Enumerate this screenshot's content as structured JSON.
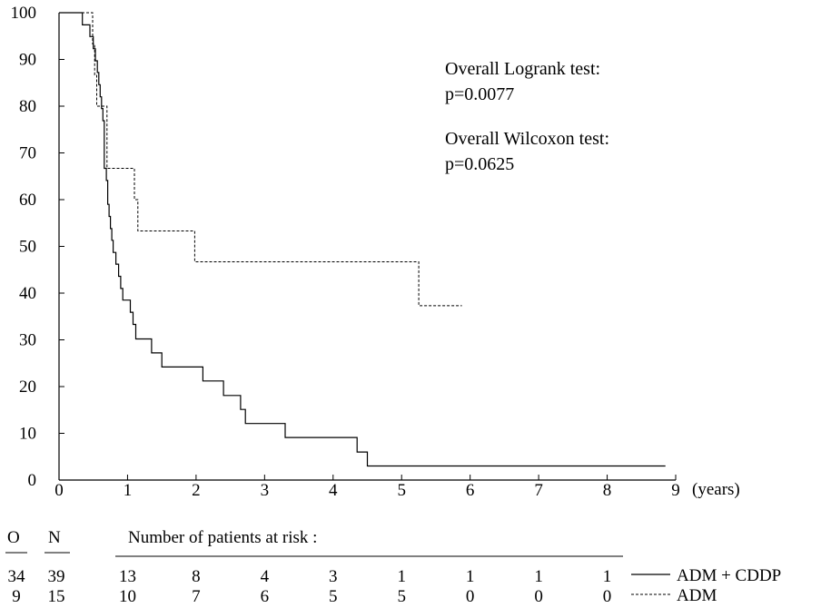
{
  "chart_data": {
    "type": "line",
    "subtype": "kaplan-meier step",
    "x_unit_label": "(years)",
    "xlim": [
      0,
      9
    ],
    "ylim": [
      0,
      100
    ],
    "x_ticks": [
      0,
      1,
      2,
      3,
      4,
      5,
      6,
      7,
      8,
      9
    ],
    "y_ticks": [
      0,
      10,
      20,
      30,
      40,
      50,
      60,
      70,
      80,
      90,
      100
    ],
    "annotations": [
      "Overall Logrank test:",
      "p=0.0077",
      "Overall Wilcoxon test:",
      "p=0.0625"
    ],
    "series": [
      {
        "name": "ADM + CDDP",
        "style": "solid",
        "points": [
          [
            0,
            100
          ],
          [
            0.34,
            100
          ],
          [
            0.34,
            97.4
          ],
          [
            0.45,
            97.4
          ],
          [
            0.45,
            94.9
          ],
          [
            0.5,
            94.9
          ],
          [
            0.5,
            92.3
          ],
          [
            0.53,
            92.3
          ],
          [
            0.53,
            89.7
          ],
          [
            0.56,
            89.7
          ],
          [
            0.56,
            87.2
          ],
          [
            0.58,
            87.2
          ],
          [
            0.58,
            84.6
          ],
          [
            0.6,
            84.6
          ],
          [
            0.6,
            82
          ],
          [
            0.62,
            82
          ],
          [
            0.62,
            79.5
          ],
          [
            0.64,
            79.5
          ],
          [
            0.64,
            76.9
          ],
          [
            0.66,
            76.9
          ],
          [
            0.66,
            66.7
          ],
          [
            0.69,
            66.7
          ],
          [
            0.69,
            64.1
          ],
          [
            0.71,
            64.1
          ],
          [
            0.71,
            59
          ],
          [
            0.73,
            59
          ],
          [
            0.73,
            56.4
          ],
          [
            0.75,
            56.4
          ],
          [
            0.75,
            53.8
          ],
          [
            0.77,
            53.8
          ],
          [
            0.77,
            51.3
          ],
          [
            0.79,
            51.3
          ],
          [
            0.79,
            48.7
          ],
          [
            0.83,
            48.7
          ],
          [
            0.83,
            46.2
          ],
          [
            0.87,
            46.2
          ],
          [
            0.87,
            43.6
          ],
          [
            0.9,
            43.6
          ],
          [
            0.9,
            41
          ],
          [
            0.93,
            41
          ],
          [
            0.93,
            38.5
          ],
          [
            1.04,
            38.5
          ],
          [
            1.04,
            35.9
          ],
          [
            1.08,
            35.9
          ],
          [
            1.08,
            33.3
          ],
          [
            1.12,
            33.3
          ],
          [
            1.12,
            30.2
          ],
          [
            1.35,
            30.2
          ],
          [
            1.35,
            27.2
          ],
          [
            1.5,
            27.2
          ],
          [
            1.5,
            24.2
          ],
          [
            2.1,
            24.2
          ],
          [
            2.1,
            21.2
          ],
          [
            2.4,
            21.2
          ],
          [
            2.4,
            18.1
          ],
          [
            2.65,
            18.1
          ],
          [
            2.65,
            15.1
          ],
          [
            2.72,
            15.1
          ],
          [
            2.72,
            12.1
          ],
          [
            3.3,
            12.1
          ],
          [
            3.3,
            9.1
          ],
          [
            4.35,
            9.1
          ],
          [
            4.35,
            6
          ],
          [
            4.5,
            6
          ],
          [
            4.5,
            3
          ],
          [
            8.85,
            3
          ]
        ]
      },
      {
        "name": "ADM",
        "style": "dashed",
        "points": [
          [
            0,
            100
          ],
          [
            0.49,
            100
          ],
          [
            0.49,
            93.3
          ],
          [
            0.52,
            93.3
          ],
          [
            0.52,
            86.7
          ],
          [
            0.55,
            86.7
          ],
          [
            0.55,
            80
          ],
          [
            0.7,
            80
          ],
          [
            0.7,
            66.7
          ],
          [
            1.1,
            66.7
          ],
          [
            1.1,
            60
          ],
          [
            1.15,
            60
          ],
          [
            1.15,
            53.3
          ],
          [
            1.98,
            53.3
          ],
          [
            1.98,
            46.7
          ],
          [
            5.25,
            46.7
          ],
          [
            5.25,
            37.3
          ],
          [
            5.88,
            37.3
          ]
        ]
      }
    ],
    "risk_table": {
      "title": "Number of patients at risk :",
      "col_O_header": "O",
      "col_N_header": "N",
      "rows": [
        {
          "O": "34",
          "N": "39",
          "counts": [
            "13",
            "8",
            "4",
            "3",
            "1",
            "1",
            "1",
            "1"
          ],
          "legend": "ADM + CDDP"
        },
        {
          "O": "9",
          "N": "15",
          "counts": [
            "10",
            "7",
            "6",
            "5",
            "5",
            "0",
            "0",
            "0"
          ],
          "legend": "ADM"
        }
      ]
    }
  }
}
